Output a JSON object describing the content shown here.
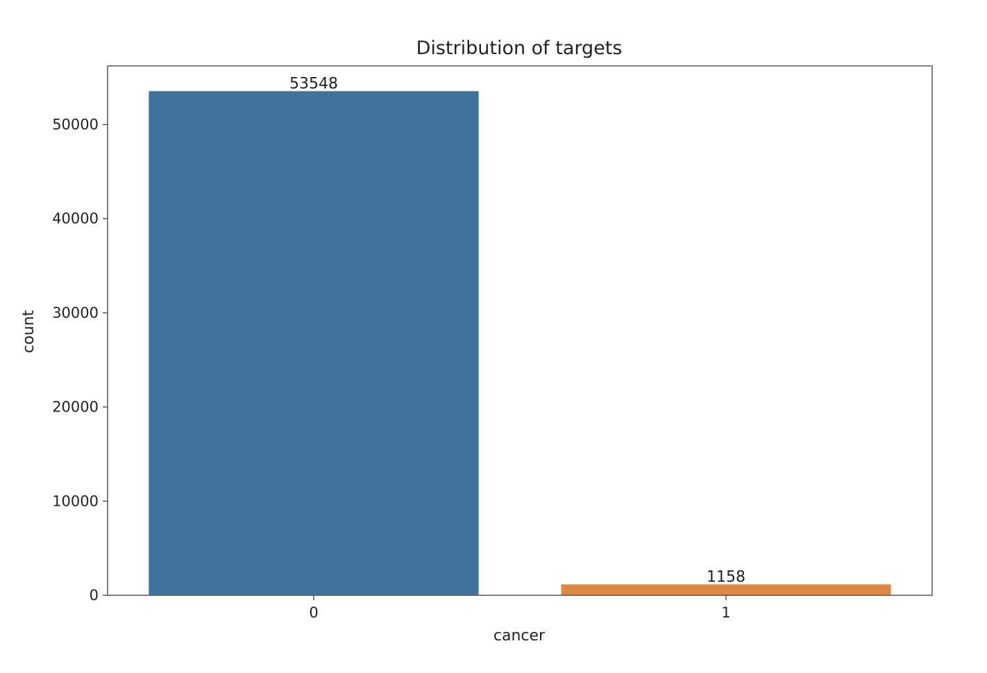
{
  "chart_data": {
    "type": "bar",
    "title": "Distribution of targets",
    "xlabel": "cancer",
    "ylabel": "count",
    "categories": [
      "0",
      "1"
    ],
    "values": [
      53548,
      1158
    ],
    "data_labels": [
      "53548",
      "1158"
    ],
    "colors": [
      "#42729c",
      "#dd8845"
    ],
    "ylim": [
      0,
      56226
    ],
    "yticks": [
      0,
      10000,
      20000,
      30000,
      40000,
      50000
    ],
    "ytick_labels": [
      "0",
      "10000",
      "20000",
      "30000",
      "40000",
      "50000"
    ],
    "grid": false,
    "legend": "none"
  }
}
